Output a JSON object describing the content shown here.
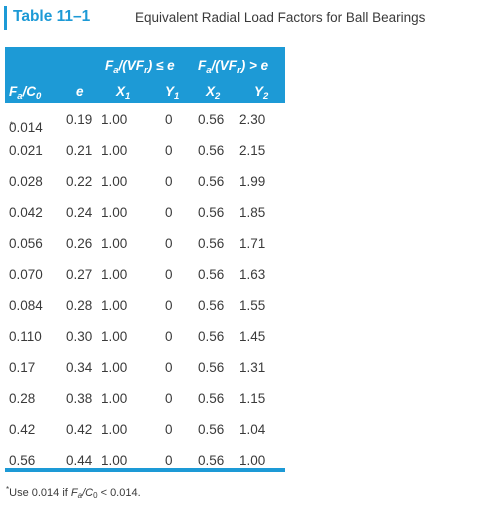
{
  "title": {
    "number": "Table 11–1",
    "caption": "Equivalent Radial Load Factors for Ball Bearings"
  },
  "header": {
    "group1": {
      "pre": "F",
      "sub1": "a",
      "mid": "/(VF",
      "sub2": "r",
      "post": ") ≤ e"
    },
    "group2": {
      "pre": "F",
      "sub1": "a",
      "mid": "/(VF",
      "sub2": "r",
      "post": ") > e"
    },
    "col_ratio": {
      "pre": "F",
      "sub1": "a",
      "mid": "/C",
      "sub2": "0"
    },
    "col_e": "e",
    "col_x1": {
      "base": "X",
      "sub": "1"
    },
    "col_y1": {
      "base": "Y",
      "sub": "1"
    },
    "col_x2": {
      "base": "X",
      "sub": "2"
    },
    "col_y2": {
      "base": "Y",
      "sub": "2"
    }
  },
  "rows": [
    {
      "ratio": "0.014",
      "mark": "*",
      "e": "0.19",
      "x1": "1.00",
      "y1": "0",
      "x2": "0.56",
      "y2": "2.30"
    },
    {
      "ratio": "0.021",
      "mark": "",
      "e": "0.21",
      "x1": "1.00",
      "y1": "0",
      "x2": "0.56",
      "y2": "2.15"
    },
    {
      "ratio": "0.028",
      "mark": "",
      "e": "0.22",
      "x1": "1.00",
      "y1": "0",
      "x2": "0.56",
      "y2": "1.99"
    },
    {
      "ratio": "0.042",
      "mark": "",
      "e": "0.24",
      "x1": "1.00",
      "y1": "0",
      "x2": "0.56",
      "y2": "1.85"
    },
    {
      "ratio": "0.056",
      "mark": "",
      "e": "0.26",
      "x1": "1.00",
      "y1": "0",
      "x2": "0.56",
      "y2": "1.71"
    },
    {
      "ratio": "0.070",
      "mark": "",
      "e": "0.27",
      "x1": "1.00",
      "y1": "0",
      "x2": "0.56",
      "y2": "1.63"
    },
    {
      "ratio": "0.084",
      "mark": "",
      "e": "0.28",
      "x1": "1.00",
      "y1": "0",
      "x2": "0.56",
      "y2": "1.55"
    },
    {
      "ratio": "0.110",
      "mark": "",
      "e": "0.30",
      "x1": "1.00",
      "y1": "0",
      "x2": "0.56",
      "y2": "1.45"
    },
    {
      "ratio": "0.17",
      "mark": "",
      "e": "0.34",
      "x1": "1.00",
      "y1": "0",
      "x2": "0.56",
      "y2": "1.31"
    },
    {
      "ratio": "0.28",
      "mark": "",
      "e": "0.38",
      "x1": "1.00",
      "y1": "0",
      "x2": "0.56",
      "y2": "1.15"
    },
    {
      "ratio": "0.42",
      "mark": "",
      "e": "0.42",
      "x1": "1.00",
      "y1": "0",
      "x2": "0.56",
      "y2": "1.04"
    },
    {
      "ratio": "0.56",
      "mark": "",
      "e": "0.44",
      "x1": "1.00",
      "y1": "0",
      "x2": "0.56",
      "y2": "1.00"
    }
  ],
  "footnote": {
    "star": "*",
    "text1": "Use 0.014 if ",
    "f": "F",
    "sub_a": "a",
    "slash_c": "/C",
    "sub_0": "0",
    "text2": " < 0.014."
  },
  "colors": {
    "accent": "#1d9ad6",
    "text": "#3a3a3a",
    "header_text": "#ffffff"
  }
}
